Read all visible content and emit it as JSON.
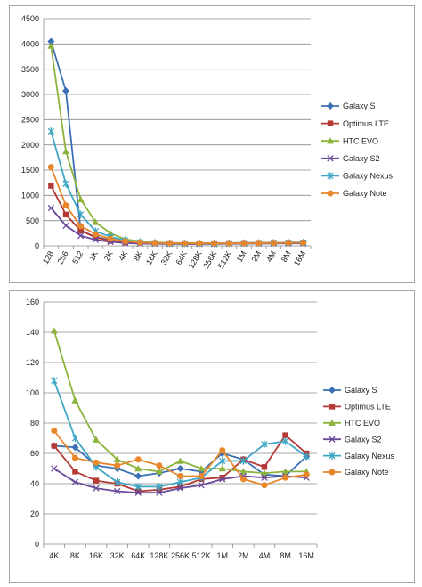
{
  "chart_data": [
    {
      "type": "line",
      "categories": [
        "128",
        "256",
        "512",
        "1K",
        "2K",
        "4K",
        "8K",
        "16K",
        "32K",
        "64K",
        "128K",
        "256K",
        "512K",
        "1M",
        "2M",
        "4M",
        "8M",
        "16M"
      ],
      "ylim": [
        0,
        4500
      ],
      "yticks": [
        "0",
        "500",
        "1000",
        "1500",
        "2000",
        "2500",
        "3000",
        "3500",
        "4000",
        "4500"
      ],
      "grid": true,
      "legend_position": "right",
      "series": [
        {
          "name": "Galaxy S",
          "color": "#3a6fb5",
          "marker": "diamond",
          "values": [
            4050,
            3070,
            300,
            180,
            110,
            80,
            70,
            60,
            55,
            55,
            55,
            55,
            55,
            60,
            60,
            62,
            65,
            68
          ]
        },
        {
          "name": "Optimus LTE",
          "color": "#b53a35",
          "marker": "square",
          "values": [
            1190,
            620,
            300,
            170,
            100,
            70,
            60,
            55,
            52,
            50,
            50,
            50,
            52,
            55,
            58,
            60,
            62,
            65
          ]
        },
        {
          "name": "HTC EVO",
          "color": "#8cb33c",
          "marker": "triangle",
          "values": [
            3960,
            1870,
            920,
            470,
            250,
            130,
            90,
            70,
            60,
            58,
            55,
            55,
            55,
            57,
            60,
            62,
            65,
            66
          ]
        },
        {
          "name": "Galaxy S2",
          "color": "#6a4a9a",
          "marker": "x",
          "values": [
            750,
            400,
            200,
            120,
            80,
            55,
            45,
            40,
            38,
            36,
            36,
            37,
            40,
            43,
            45,
            46,
            48,
            50
          ]
        },
        {
          "name": "Galaxy Nexus",
          "color": "#3ea6c4",
          "marker": "star",
          "values": [
            2270,
            1230,
            620,
            290,
            180,
            110,
            70,
            55,
            50,
            48,
            48,
            48,
            50,
            52,
            55,
            60,
            62,
            64
          ]
        },
        {
          "name": "Galaxy Note",
          "color": "#e8862c",
          "marker": "circle",
          "values": [
            1560,
            800,
            390,
            230,
            140,
            90,
            65,
            55,
            52,
            50,
            50,
            50,
            50,
            52,
            55,
            58,
            60,
            62
          ]
        }
      ]
    },
    {
      "type": "line",
      "categories": [
        "4K",
        "8K",
        "16K",
        "32K",
        "64K",
        "128K",
        "256K",
        "512K",
        "1M",
        "2M",
        "4M",
        "8M",
        "16M"
      ],
      "ylim": [
        0,
        160
      ],
      "yticks": [
        "0",
        "20",
        "40",
        "60",
        "80",
        "100",
        "120",
        "140",
        "160"
      ],
      "grid": true,
      "legend_position": "right",
      "series": [
        {
          "name": "Galaxy S",
          "color": "#3a6fb5",
          "marker": "diamond",
          "values": [
            65,
            64,
            52,
            50,
            45,
            47,
            50,
            48,
            60,
            56,
            46,
            45,
            58
          ]
        },
        {
          "name": "Optimus LTE",
          "color": "#b53a35",
          "marker": "square",
          "values": [
            65,
            48,
            42,
            40,
            35,
            36,
            38,
            43,
            44,
            56,
            51,
            72,
            60
          ]
        },
        {
          "name": "HTC EVO",
          "color": "#8cb33c",
          "marker": "triangle",
          "values": [
            141,
            95,
            69,
            56,
            50,
            48,
            55,
            50,
            50,
            48,
            47,
            48,
            48
          ]
        },
        {
          "name": "Galaxy S2",
          "color": "#6a4a9a",
          "marker": "x",
          "values": [
            50,
            41,
            37,
            35,
            34,
            34,
            37,
            39,
            43,
            45,
            44,
            45,
            44
          ]
        },
        {
          "name": "Galaxy Nexus",
          "color": "#3ea6c4",
          "marker": "star",
          "values": [
            108,
            70,
            51,
            41,
            38,
            38,
            41,
            44,
            55,
            55,
            66,
            68,
            58
          ]
        },
        {
          "name": "Galaxy Note",
          "color": "#e8862c",
          "marker": "circle",
          "values": [
            75,
            57,
            54,
            52,
            56,
            52,
            45,
            45,
            62,
            43,
            39,
            44,
            46
          ]
        }
      ]
    }
  ]
}
